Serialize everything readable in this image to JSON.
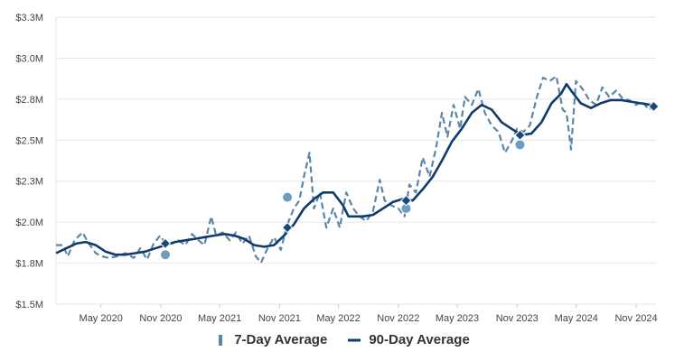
{
  "chart_data": {
    "type": "line",
    "x_ticks": [
      "May 2020",
      "Nov 2020",
      "May 2021",
      "Nov 2021",
      "May 2022",
      "Nov 2022",
      "May 2023",
      "Nov 2023",
      "May 2024",
      "Nov 2024"
    ],
    "y_ticks": [
      "$1.5M",
      "$1.8M",
      "$2.0M",
      "$2.3M",
      "$2.5M",
      "$2.8M",
      "$3.0M",
      "$3.3M"
    ],
    "ylim": [
      1.5,
      3.3
    ],
    "xlim": [
      "2019-12-15",
      "2025-01-01"
    ],
    "grid": true,
    "legend_position": "bottom",
    "series": [
      {
        "name": "7-Day Average",
        "style": "dashed",
        "color": "#5b86a8",
        "points": [
          [
            "2019-12-15",
            1.87
          ],
          [
            "2020-01-05",
            1.87
          ],
          [
            "2020-01-20",
            1.8
          ],
          [
            "2020-02-10",
            1.9
          ],
          [
            "2020-03-05",
            1.95
          ],
          [
            "2020-03-25",
            1.88
          ],
          [
            "2020-04-15",
            1.82
          ],
          [
            "2020-05-05",
            1.8
          ],
          [
            "2020-05-25",
            1.79
          ],
          [
            "2020-06-20",
            1.8
          ],
          [
            "2020-07-15",
            1.82
          ],
          [
            "2020-08-10",
            1.79
          ],
          [
            "2020-08-30",
            1.85
          ],
          [
            "2020-09-20",
            1.78
          ],
          [
            "2020-10-10",
            1.88
          ],
          [
            "2020-10-30",
            1.93
          ],
          [
            "2020-11-15",
            1.88
          ],
          [
            "2020-12-05",
            1.88
          ],
          [
            "2020-12-25",
            1.9
          ],
          [
            "2021-01-15",
            1.87
          ],
          [
            "2021-02-05",
            1.94
          ],
          [
            "2021-02-25",
            1.9
          ],
          [
            "2021-03-15",
            1.87
          ],
          [
            "2021-04-05",
            2.05
          ],
          [
            "2021-04-20",
            1.93
          ],
          [
            "2021-05-10",
            1.95
          ],
          [
            "2021-06-01",
            1.9
          ],
          [
            "2021-06-20",
            1.95
          ],
          [
            "2021-07-10",
            1.88
          ],
          [
            "2021-07-30",
            1.93
          ],
          [
            "2021-08-20",
            1.8
          ],
          [
            "2021-09-05",
            1.76
          ],
          [
            "2021-09-25",
            1.85
          ],
          [
            "2021-10-15",
            1.92
          ],
          [
            "2021-11-05",
            1.84
          ],
          [
            "2021-11-25",
            2.0
          ],
          [
            "2021-12-15",
            2.1
          ],
          [
            "2022-01-01",
            2.15
          ],
          [
            "2022-01-15",
            2.3
          ],
          [
            "2022-02-01",
            2.45
          ],
          [
            "2022-02-15",
            2.1
          ],
          [
            "2022-03-05",
            2.2
          ],
          [
            "2022-03-25",
            1.98
          ],
          [
            "2022-04-15",
            2.1
          ],
          [
            "2022-05-05",
            1.98
          ],
          [
            "2022-05-25",
            2.2
          ],
          [
            "2022-06-15",
            2.1
          ],
          [
            "2022-07-05",
            2.05
          ],
          [
            "2022-07-25",
            2.02
          ],
          [
            "2022-08-15",
            2.08
          ],
          [
            "2022-09-05",
            2.28
          ],
          [
            "2022-09-20",
            2.15
          ],
          [
            "2022-10-10",
            2.12
          ],
          [
            "2022-11-01",
            2.1
          ],
          [
            "2022-11-20",
            2.05
          ],
          [
            "2022-12-05",
            2.25
          ],
          [
            "2022-12-25",
            2.2
          ],
          [
            "2023-01-15",
            2.42
          ],
          [
            "2023-02-05",
            2.3
          ],
          [
            "2023-02-25",
            2.48
          ],
          [
            "2023-03-15",
            2.7
          ],
          [
            "2023-04-01",
            2.55
          ],
          [
            "2023-04-20",
            2.75
          ],
          [
            "2023-05-10",
            2.6
          ],
          [
            "2023-05-25",
            2.8
          ],
          [
            "2023-06-15",
            2.75
          ],
          [
            "2023-07-05",
            2.85
          ],
          [
            "2023-07-25",
            2.7
          ],
          [
            "2023-08-15",
            2.62
          ],
          [
            "2023-09-05",
            2.58
          ],
          [
            "2023-09-25",
            2.45
          ],
          [
            "2023-10-15",
            2.52
          ],
          [
            "2023-11-01",
            2.6
          ],
          [
            "2023-11-20",
            2.58
          ],
          [
            "2023-12-10",
            2.62
          ],
          [
            "2024-01-01",
            2.8
          ],
          [
            "2024-01-20",
            2.92
          ],
          [
            "2024-02-10",
            2.9
          ],
          [
            "2024-03-01",
            2.93
          ],
          [
            "2024-03-20",
            2.72
          ],
          [
            "2024-04-01",
            2.7
          ],
          [
            "2024-04-15",
            2.47
          ],
          [
            "2024-04-30",
            2.9
          ],
          [
            "2024-05-20",
            2.85
          ],
          [
            "2024-06-10",
            2.78
          ],
          [
            "2024-07-01",
            2.75
          ],
          [
            "2024-07-20",
            2.86
          ],
          [
            "2024-08-10",
            2.8
          ],
          [
            "2024-09-01",
            2.84
          ],
          [
            "2024-09-20",
            2.79
          ],
          [
            "2024-10-10",
            2.78
          ],
          [
            "2024-11-01",
            2.75
          ],
          [
            "2024-11-20",
            2.77
          ],
          [
            "2024-12-10",
            2.72
          ],
          [
            "2024-12-25",
            2.74
          ]
        ]
      },
      {
        "name": "90-Day Average",
        "style": "solid",
        "color": "#0f3c6b",
        "points": [
          [
            "2019-12-15",
            1.82
          ],
          [
            "2020-01-15",
            1.85
          ],
          [
            "2020-02-15",
            1.88
          ],
          [
            "2020-03-15",
            1.89
          ],
          [
            "2020-04-15",
            1.87
          ],
          [
            "2020-05-15",
            1.83
          ],
          [
            "2020-06-15",
            1.81
          ],
          [
            "2020-07-15",
            1.81
          ],
          [
            "2020-08-15",
            1.82
          ],
          [
            "2020-09-15",
            1.83
          ],
          [
            "2020-10-15",
            1.85
          ],
          [
            "2020-11-15",
            1.87
          ],
          [
            "2020-12-15",
            1.89
          ],
          [
            "2021-01-15",
            1.9
          ],
          [
            "2021-02-15",
            1.91
          ],
          [
            "2021-03-15",
            1.92
          ],
          [
            "2021-04-15",
            1.93
          ],
          [
            "2021-05-15",
            1.94
          ],
          [
            "2021-06-15",
            1.93
          ],
          [
            "2021-07-15",
            1.91
          ],
          [
            "2021-08-15",
            1.87
          ],
          [
            "2021-09-15",
            1.86
          ],
          [
            "2021-10-15",
            1.87
          ],
          [
            "2021-11-15",
            1.93
          ],
          [
            "2021-12-15",
            2.0
          ],
          [
            "2022-01-15",
            2.1
          ],
          [
            "2022-02-15",
            2.16
          ],
          [
            "2022-03-15",
            2.2
          ],
          [
            "2022-04-15",
            2.2
          ],
          [
            "2022-05-15",
            2.12
          ],
          [
            "2022-06-01",
            2.05
          ],
          [
            "2022-07-15",
            2.05
          ],
          [
            "2022-08-15",
            2.06
          ],
          [
            "2022-09-15",
            2.1
          ],
          [
            "2022-10-15",
            2.14
          ],
          [
            "2022-11-15",
            2.16
          ],
          [
            "2022-12-15",
            2.15
          ],
          [
            "2023-01-15",
            2.22
          ],
          [
            "2023-02-15",
            2.3
          ],
          [
            "2023-03-15",
            2.4
          ],
          [
            "2023-04-15",
            2.52
          ],
          [
            "2023-05-15",
            2.6
          ],
          [
            "2023-06-15",
            2.7
          ],
          [
            "2023-07-15",
            2.75
          ],
          [
            "2023-08-15",
            2.72
          ],
          [
            "2023-09-15",
            2.64
          ],
          [
            "2023-10-15",
            2.6
          ],
          [
            "2023-11-15",
            2.56
          ],
          [
            "2023-12-15",
            2.57
          ],
          [
            "2024-01-15",
            2.64
          ],
          [
            "2024-02-15",
            2.76
          ],
          [
            "2024-03-15",
            2.82
          ],
          [
            "2024-04-01",
            2.88
          ],
          [
            "2024-04-15",
            2.84
          ],
          [
            "2024-05-15",
            2.76
          ],
          [
            "2024-06-15",
            2.73
          ],
          [
            "2024-07-15",
            2.76
          ],
          [
            "2024-08-15",
            2.78
          ],
          [
            "2024-09-15",
            2.78
          ],
          [
            "2024-10-15",
            2.77
          ],
          [
            "2024-11-15",
            2.76
          ],
          [
            "2024-12-15",
            2.75
          ],
          [
            "2025-01-01",
            2.74
          ]
        ]
      }
    ],
    "circle_markers": [
      [
        "2020-11-15",
        1.81
      ],
      [
        "2021-11-25",
        2.17
      ],
      [
        "2022-11-25",
        2.1
      ],
      [
        "2023-11-10",
        2.5
      ]
    ],
    "diamond_markers": [
      [
        "2020-11-15",
        1.88
      ],
      [
        "2021-11-25",
        1.98
      ],
      [
        "2022-11-25",
        2.15
      ],
      [
        "2023-11-10",
        2.56
      ],
      [
        "2024-12-25",
        2.74
      ]
    ],
    "colors": {
      "seven_day": "#5b86a8",
      "ninety_day": "#0f3c6b",
      "circle_marker": "#6f9bbd",
      "diamond_marker": "#174a7e",
      "grid": "#e6e6e6",
      "axis_text": "#444444"
    }
  }
}
